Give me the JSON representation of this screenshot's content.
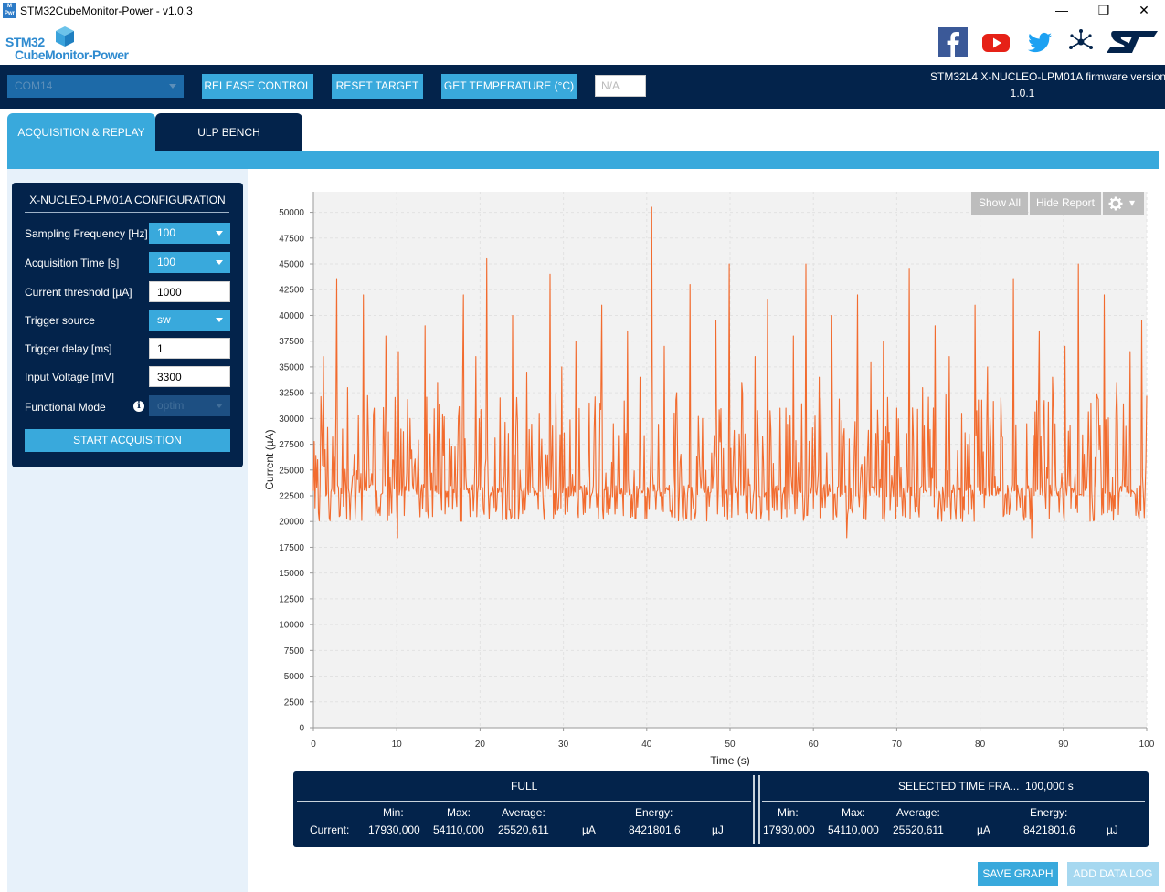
{
  "window": {
    "title": "STM32CubeMonitor-Power - v1.0.3",
    "icon_text": "M Pwr",
    "minimize": "—",
    "maximize": "❐",
    "close": "✕"
  },
  "logo": {
    "line1": "STM32",
    "line2": "CubeMonitor-Power"
  },
  "social_icons": [
    "facebook-icon",
    "youtube-icon",
    "twitter-icon",
    "network-icon",
    "st-logo"
  ],
  "toolbar": {
    "com_port": "COM14",
    "release_control": "RELEASE CONTROL",
    "reset_target": "RESET TARGET",
    "get_temperature": "GET TEMPERATURE (°C)",
    "temperature_value": "N/A",
    "firmware_line1": "STM32L4 X-NUCLEO-LPM01A firmware version",
    "firmware_line2": "1.0.1"
  },
  "tabs": [
    {
      "label": "ACQUISITION & REPLAY",
      "active": true
    },
    {
      "label": "ULP BENCH",
      "active": false
    }
  ],
  "config": {
    "title": "X-NUCLEO-LPM01A CONFIGURATION",
    "sampling_frequency": {
      "label": "Sampling Frequency [Hz]",
      "value": "100"
    },
    "acquisition_time": {
      "label": "Acquisition Time [s]",
      "value": "100"
    },
    "current_threshold": {
      "label": "Current threshold [µA]",
      "value": "1000"
    },
    "trigger_source": {
      "label": "Trigger source",
      "value": "sw"
    },
    "trigger_delay": {
      "label": "Trigger delay [ms]",
      "value": "1"
    },
    "input_voltage": {
      "label": "Input Voltage [mV]",
      "value": "3300"
    },
    "functional_mode": {
      "label": "Functional Mode",
      "value": "optim"
    },
    "start_button": "START ACQUISITION"
  },
  "chart_buttons": {
    "show_all": "Show All",
    "hide_report": "Hide Report",
    "settings_caret": "▾"
  },
  "chart_data": {
    "type": "line",
    "xlabel": "Time (s)",
    "ylabel": "Current (µA)",
    "xlim": [
      0,
      100
    ],
    "ylim": [
      0,
      52000
    ],
    "x_ticks": [
      0,
      10,
      20,
      30,
      40,
      50,
      60,
      70,
      80,
      90,
      100
    ],
    "y_ticks": [
      0,
      2500,
      5000,
      7500,
      10000,
      12500,
      15000,
      17500,
      20000,
      22500,
      25000,
      27500,
      30000,
      32500,
      35000,
      37500,
      40000,
      42500,
      45000,
      47500,
      50000
    ],
    "grid": true,
    "line_color": "#f26b2e",
    "series": [
      {
        "baseline": 23000,
        "peaks_x": [
          1.2,
          2.8,
          4.1,
          5.9,
          7.2,
          8.6,
          10.1,
          11.5,
          13.3,
          14.8,
          16.2,
          17.9,
          19.5,
          20.8,
          22.4,
          23.9,
          25.6,
          27.1,
          28.4,
          29.8,
          31.5,
          33.1,
          34.6,
          36.0,
          37.7,
          39.2,
          40.6,
          42.1,
          43.6,
          45.2,
          46.7,
          48.3,
          49.9,
          51.4,
          53.0,
          54.5,
          56.0,
          57.6,
          59.1,
          60.7,
          62.2,
          63.7,
          65.3,
          66.9,
          68.4,
          70.0,
          71.5,
          73.1,
          74.6,
          76.2,
          77.7,
          79.3,
          80.8,
          82.4,
          83.9,
          85.5,
          87.0,
          88.6,
          90.1,
          91.7,
          93.2,
          94.8,
          96.3,
          97.9,
          99.3
        ],
        "peaks_y": [
          36000,
          43500,
          33000,
          42000,
          31000,
          38000,
          36500,
          30000,
          39000,
          33500,
          28000,
          42000,
          36000,
          45500,
          32000,
          40000,
          34500,
          30500,
          44000,
          35000,
          37500,
          31500,
          41000,
          29500,
          38500,
          34000,
          50500,
          37000,
          32500,
          43000,
          30000,
          39500,
          45000,
          33500,
          36000,
          41500,
          31000,
          38000,
          45000,
          34000,
          40000,
          29000,
          42000,
          35500,
          37500,
          31000,
          44500,
          33000,
          39000,
          36000,
          30500,
          41000,
          35000,
          32000,
          43500,
          29500,
          38500,
          34000,
          37000,
          45000,
          31500,
          42000,
          33500,
          36500,
          39500
        ],
        "min": 17930,
        "max": 54110
      }
    ]
  },
  "stats": {
    "full_label": "FULL",
    "selected_label": "SELECTED TIME FRA...",
    "selected_value": "100,000 s",
    "headers": {
      "min": "Min:",
      "max": "Max:",
      "average": "Average:",
      "energy": "Energy:"
    },
    "row_label": "Current:",
    "full": {
      "min": "17930,000",
      "max": "54110,000",
      "average": "25520,611",
      "unit": "µA",
      "energy": "8421801,6",
      "energy_unit": "µJ"
    },
    "selected": {
      "min": "17930,000",
      "max": "54110,000",
      "average": "25520,611",
      "unit": "µA",
      "energy": "8421801,6",
      "energy_unit": "µJ"
    }
  },
  "bottom_buttons": {
    "save_graph": "SAVE GRAPH",
    "add_data_log": "ADD DATA LOG"
  }
}
